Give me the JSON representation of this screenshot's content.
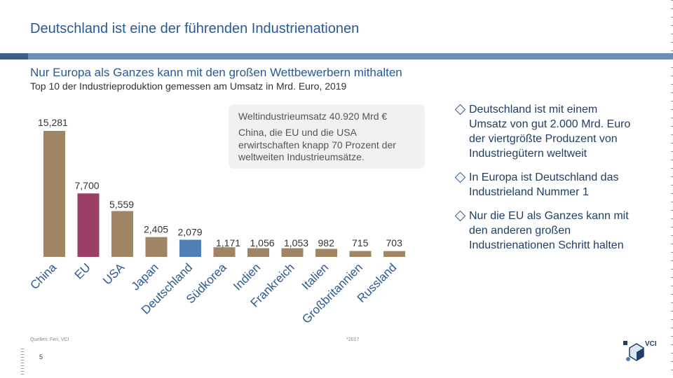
{
  "slide": {
    "title": "Deutschland ist eine der führenden Industrienationen",
    "subtitle": "Nur Europa als Ganzes kann mit den großen Wettbewerbern mithalten",
    "subsubtitle": "Top 10 der Industrieproduktion gemessen am Umsatz in Mrd. Euro, 2019",
    "source": "Quellen: Feri, VCI",
    "footnote": "*2017",
    "page_number": "5",
    "logo_text": "VCI"
  },
  "callout": {
    "lines": [
      "Weltindustrieumsatz 40.920 Mrd €",
      "China, die EU und die USA",
      "erwirtschaften knapp 70 Prozent der",
      "weltweiten Industrieumsätze."
    ]
  },
  "bullets": [
    {
      "lines": [
        "Deutschland ist mit einem",
        "Umsatz von gut 2.000 Mrd. Euro",
        "der viertgrößte Produzent von",
        "Industriegütern weltweit"
      ]
    },
    {
      "lines": [
        "In Europa ist Deutschland das",
        "Industrieland Nummer 1"
      ]
    },
    {
      "lines": [
        "Nur die EU als Ganzes kann mit",
        "den anderen großen",
        "Industrienationen Schritt halten"
      ]
    }
  ],
  "colors": {
    "default_bar": "#a08565",
    "eu_bar": "#9b3f66",
    "germany_bar": "#4f7fb5",
    "title": "#2a5a93"
  },
  "chart_data": {
    "type": "bar",
    "title": "Top 10 der Industrieproduktion gemessen am Umsatz in Mrd. Euro, 2019",
    "categories": [
      "China",
      "EU",
      "USA",
      "Japan",
      "Deutschland",
      "Südkorea",
      "Indien",
      "Frankreich",
      "Italien",
      "Großbritannien",
      "Russland"
    ],
    "values": [
      15281,
      7700,
      5559,
      2405,
      2079,
      1171,
      1056,
      1053,
      982,
      715,
      703
    ],
    "value_labels": [
      "15,281",
      "7,700",
      "5,559",
      "2,405",
      "2,079",
      "1,171",
      "1,056",
      "1,053",
      "982",
      "715",
      "703"
    ],
    "highlight": {
      "EU": "eu_bar",
      "Deutschland": "germany_bar"
    },
    "ylabel": "Mrd. Euro",
    "ylim": [
      0,
      15281
    ],
    "grid": false,
    "legend": "none"
  }
}
